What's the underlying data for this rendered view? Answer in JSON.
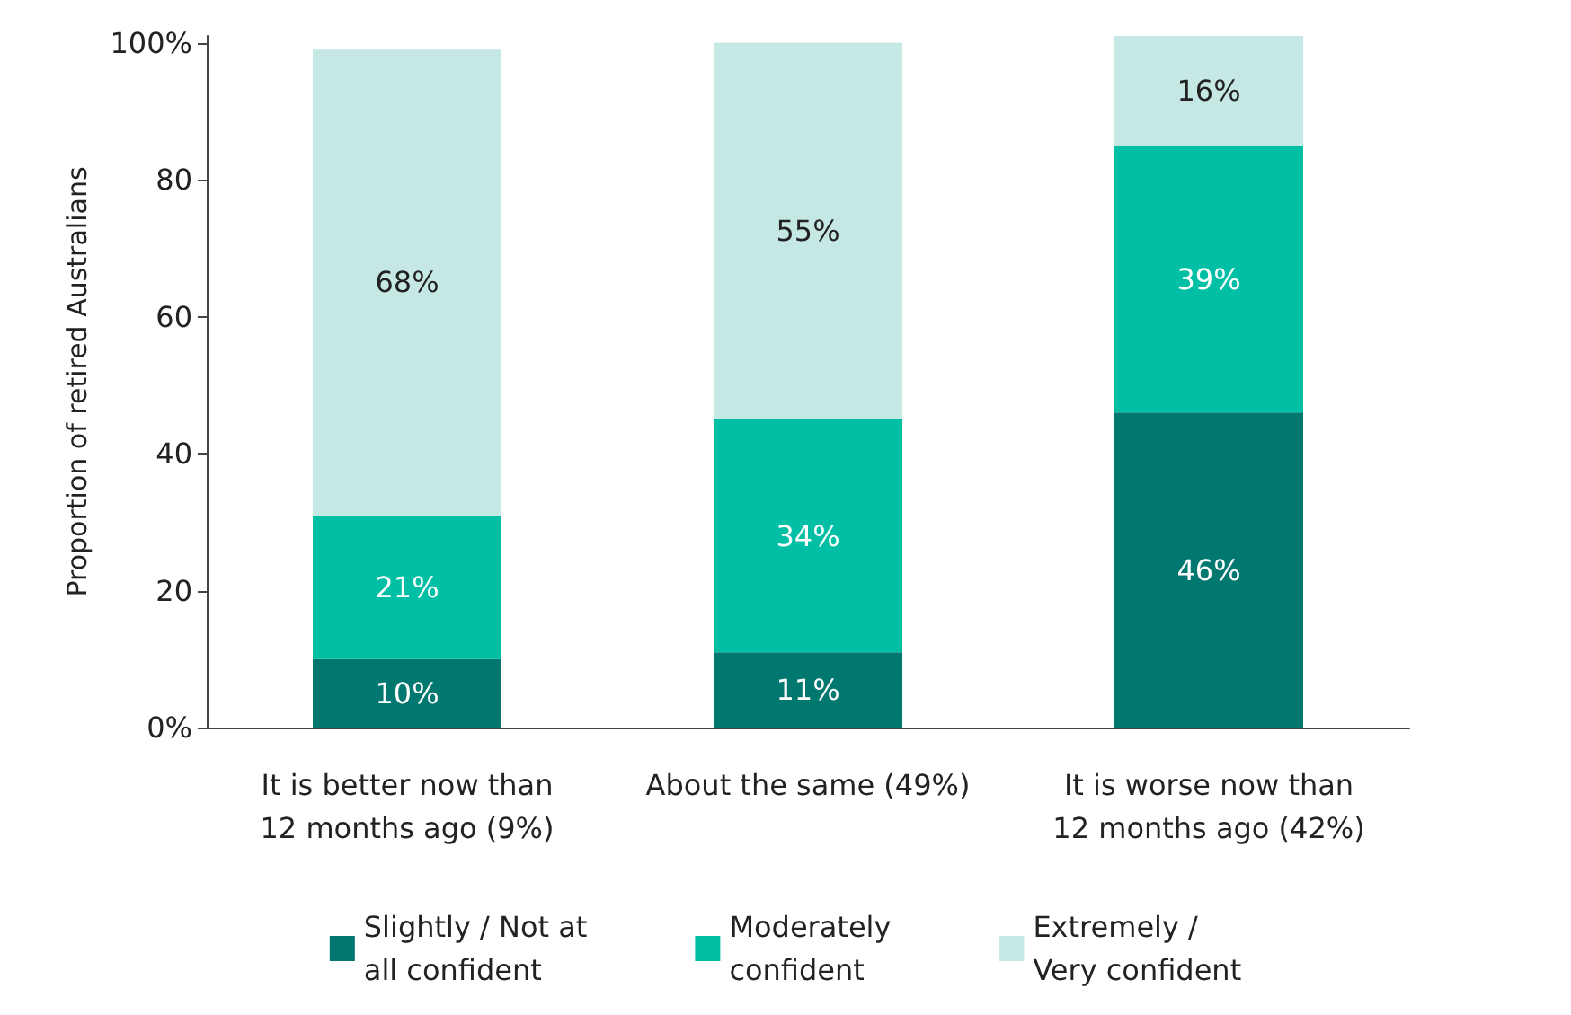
{
  "chart_data": {
    "type": "bar",
    "stacked": true,
    "ylabel": "Proportion of retired Australians",
    "categories": [
      "It is better now than\n12 months ago (9%)",
      "About the same (49%)",
      "It is worse now than\n12 months ago (42%)"
    ],
    "series": [
      {
        "name": "Slightly / Not at\nall confident",
        "color": "#00786f",
        "values": [
          10,
          11,
          46
        ],
        "value_labels": [
          "10%",
          "11%",
          "46%"
        ]
      },
      {
        "name": "Moderately\nconfident",
        "color": "#00bfa5",
        "values": [
          21,
          34,
          39
        ],
        "value_labels": [
          "21%",
          "34%",
          "39%"
        ]
      },
      {
        "name": "Extremely /\nVery confident",
        "color": "#c5e8e5",
        "values": [
          68,
          55,
          16
        ],
        "value_labels": [
          "68%",
          "55%",
          "16%"
        ]
      }
    ],
    "ylim": [
      0,
      101
    ],
    "yticks": [
      {
        "value": 0,
        "label": "0%"
      },
      20,
      40,
      60,
      80,
      {
        "value": 100,
        "label": "100%"
      }
    ],
    "legend": "bottom",
    "grid": false
  }
}
